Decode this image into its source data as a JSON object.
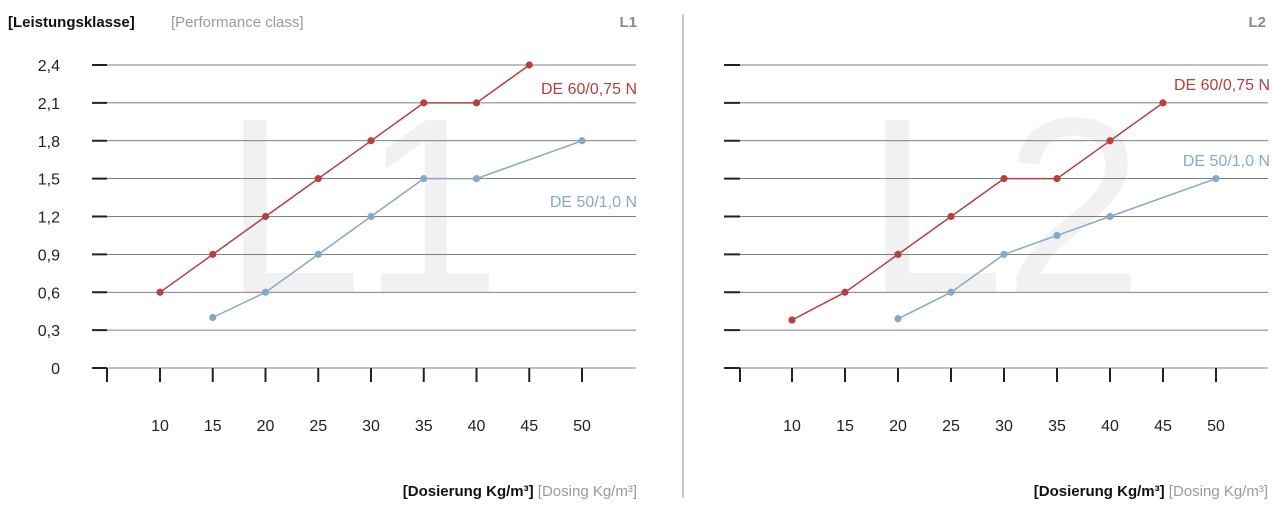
{
  "header": {
    "bold": "[Leistungsklasse]",
    "light": "[Performance class]"
  },
  "colors": {
    "red": "#b5403f",
    "blue": "#86a9c6",
    "grid": "#444444",
    "divider": "#c8c8c8",
    "watermark": "#f1f1f3"
  },
  "chart_data": [
    {
      "type": "line",
      "panel_label": "L1",
      "watermark": "L1",
      "xlabel_bold": "[Dosierung Kg/m³]",
      "xlabel_light": "[Dosing Kg/m³]",
      "x_ticks": [
        "10",
        "15",
        "20",
        "25",
        "30",
        "35",
        "40",
        "45",
        "50"
      ],
      "y_ticks": [
        "0",
        "0,3",
        "0,6",
        "0,9",
        "1,2",
        "1,5",
        "1,8",
        "2,1",
        "2,4"
      ],
      "show_y_tick_labels": true,
      "ylim": [
        0,
        2.4
      ],
      "xlim": [
        10,
        50
      ],
      "grid": true,
      "series": [
        {
          "name": "DE 60/0,75 N",
          "color": "#b5403f",
          "x": [
            10,
            15,
            20,
            25,
            30,
            35,
            40,
            45
          ],
          "y": [
            0.6,
            0.9,
            1.2,
            1.5,
            1.8,
            2.1,
            2.1,
            2.4
          ]
        },
        {
          "name": "DE 50/1,0 N",
          "color": "#86a9c6",
          "x": [
            15,
            20,
            25,
            30,
            35,
            40,
            50
          ],
          "y": [
            0.4,
            0.6,
            0.9,
            1.2,
            1.5,
            1.5,
            1.8
          ]
        }
      ]
    },
    {
      "type": "line",
      "panel_label": "L2",
      "watermark": "L2",
      "xlabel_bold": "[Dosierung Kg/m³]",
      "xlabel_light": "[Dosing Kg/m³]",
      "x_ticks": [
        "10",
        "15",
        "20",
        "25",
        "30",
        "35",
        "40",
        "45",
        "50"
      ],
      "y_ticks": [
        "0",
        "0,3",
        "0,6",
        "0,9",
        "1,2",
        "1,5",
        "1,8",
        "2,1",
        "2,4"
      ],
      "show_y_tick_labels": false,
      "ylim": [
        0,
        2.4
      ],
      "xlim": [
        10,
        50
      ],
      "grid": true,
      "series": [
        {
          "name": "DE 60/0,75 N",
          "color": "#b5403f",
          "x": [
            10,
            15,
            20,
            25,
            30,
            35,
            40,
            45
          ],
          "y": [
            0.38,
            0.6,
            0.9,
            1.2,
            1.5,
            1.5,
            1.8,
            2.1
          ]
        },
        {
          "name": "DE 50/1,0 N",
          "color": "#86a9c6",
          "x": [
            20,
            25,
            30,
            35,
            40,
            50
          ],
          "y": [
            0.39,
            0.6,
            0.9,
            1.05,
            1.2,
            1.5
          ]
        }
      ]
    }
  ]
}
